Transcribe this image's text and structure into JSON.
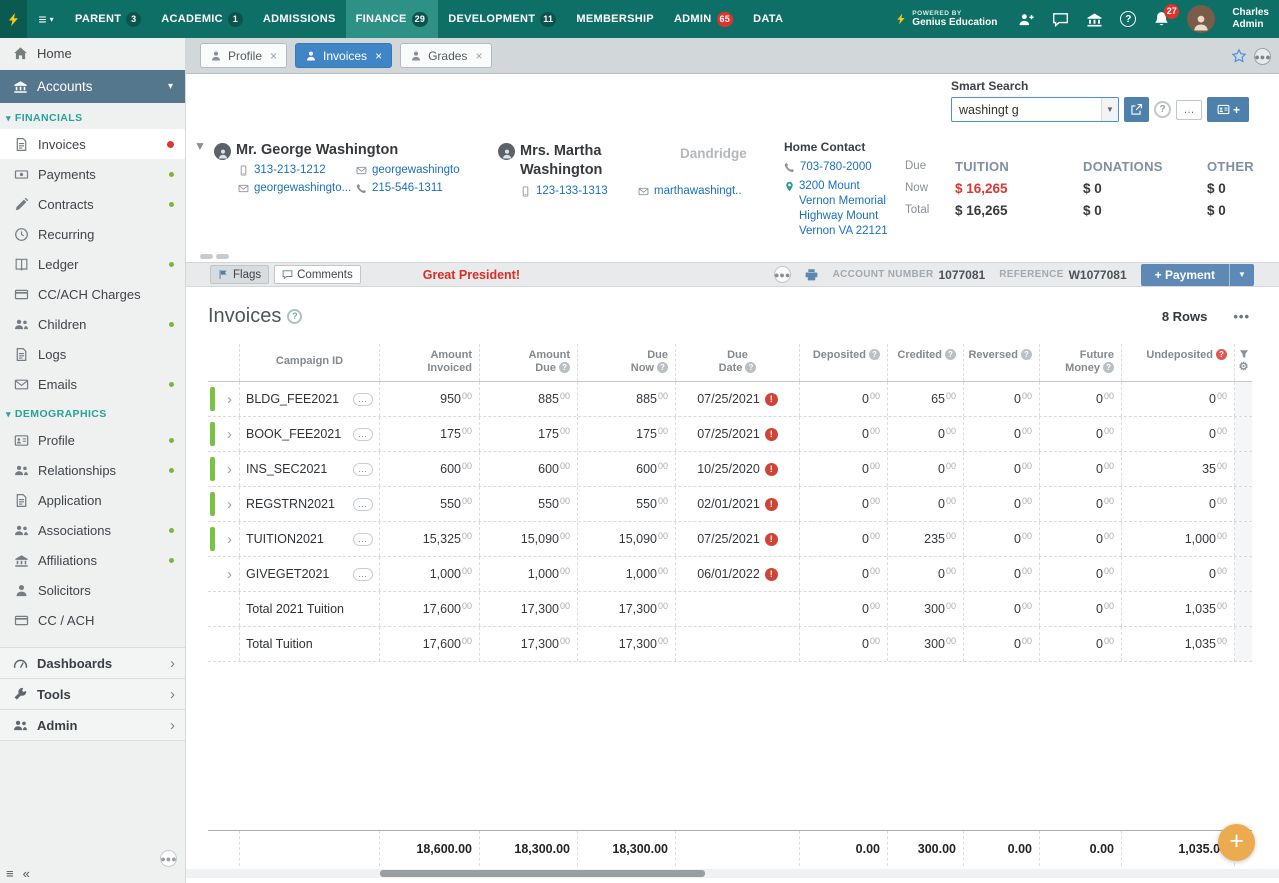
{
  "colors": {
    "nav_teal": "#0e6f66",
    "nav_active_teal": "#2e9186",
    "accent_blue": "#4086c6",
    "button_blue": "#5d89b4",
    "link_blue": "#1a6fc0",
    "alert_red": "#e0332c",
    "due_red": "#e0352f",
    "row_green": "#7cc242",
    "fab_orange": "#ecab4f"
  },
  "topnav": {
    "items": [
      {
        "label": "PARENT",
        "badge": "3",
        "badge_style": "",
        "active": false
      },
      {
        "label": "ACADEMIC",
        "badge": "1",
        "badge_style": "",
        "active": false
      },
      {
        "label": "ADMISSIONS",
        "badge": "",
        "badge_style": "",
        "active": false
      },
      {
        "label": "FINANCE",
        "badge": "29",
        "badge_style": "",
        "active": true
      },
      {
        "label": "DEVELOPMENT",
        "badge": "11",
        "badge_style": "",
        "active": false
      },
      {
        "label": "MEMBERSHIP",
        "badge": "",
        "badge_style": "",
        "active": false
      },
      {
        "label": "ADMIN",
        "badge": "65",
        "badge_style": "red",
        "active": false
      },
      {
        "label": "DATA",
        "badge": "",
        "badge_style": "",
        "active": false
      }
    ],
    "powered_by": {
      "line1": "POWERED BY",
      "line2": "Genius Education"
    },
    "bell_badge": "27",
    "user": {
      "line1": "Charles",
      "line2": "Admin"
    }
  },
  "sidebar": {
    "home_label": "Home",
    "accounts_label": "Accounts",
    "sections": [
      {
        "label": "FINANCIALS",
        "items": [
          {
            "label": "Invoices",
            "icon": "doc",
            "dot": "red",
            "active": true
          },
          {
            "label": "Payments",
            "icon": "money",
            "dot": "green",
            "active": false
          },
          {
            "label": "Contracts",
            "icon": "pencil",
            "dot": "green",
            "active": false
          },
          {
            "label": "Recurring",
            "icon": "clock",
            "dot": "",
            "active": false
          },
          {
            "label": "Ledger",
            "icon": "book",
            "dot": "green",
            "active": false
          },
          {
            "label": "CC/ACH Charges",
            "icon": "card",
            "dot": "",
            "active": false
          },
          {
            "label": "Children",
            "icon": "people",
            "dot": "green",
            "active": false
          },
          {
            "label": "Logs",
            "icon": "doc",
            "dot": "",
            "active": false
          },
          {
            "label": "Emails",
            "icon": "mail",
            "dot": "green",
            "active": false
          }
        ]
      },
      {
        "label": "DEMOGRAPHICS",
        "items": [
          {
            "label": "Profile",
            "icon": "idcard",
            "dot": "green",
            "active": false
          },
          {
            "label": "Relationships",
            "icon": "people",
            "dot": "green",
            "active": false
          },
          {
            "label": "Application",
            "icon": "doc",
            "dot": "",
            "active": false
          },
          {
            "label": "Associations",
            "icon": "people",
            "dot": "green",
            "active": false
          },
          {
            "label": "Affiliations",
            "icon": "bank",
            "dot": "green",
            "active": false
          },
          {
            "label": "Solicitors",
            "icon": "person",
            "dot": "",
            "active": false
          },
          {
            "label": "CC / ACH",
            "icon": "card",
            "dot": "",
            "active": false
          }
        ]
      }
    ],
    "bottom_items": [
      {
        "label": "Dashboards",
        "icon": "gauge"
      },
      {
        "label": "Tools",
        "icon": "wrench"
      },
      {
        "label": "Admin",
        "icon": "people"
      }
    ]
  },
  "tabs": [
    {
      "label": "Profile",
      "active": false
    },
    {
      "label": "Invoices",
      "active": true
    },
    {
      "label": "Grades",
      "active": false
    }
  ],
  "smart_search": {
    "label": "Smart Search",
    "value": "washingt g"
  },
  "account": {
    "primary": {
      "name": "Mr. George Washington",
      "mobile": "313-213-1212",
      "email1": "georgewashingto",
      "email2": "georgewashingto...",
      "phone": "215-546-1311"
    },
    "secondary": {
      "name_line1": "Mrs. Martha",
      "name_line2": "Washington",
      "mobile": "123-133-1313",
      "email": "marthawashingt.."
    },
    "nickname": "Dandridge",
    "home_contact": {
      "label": "Home Contact",
      "phone": "703-780-2000",
      "address_lines": [
        "3200 Mount",
        "Vernon Memorial",
        "Highway Mount",
        "Vernon VA 22121"
      ]
    },
    "summary": {
      "rows": [
        "Due",
        "Now",
        "Total"
      ],
      "columns": [
        {
          "label": "TUITION",
          "now": "$ 16,265",
          "total": "$ 16,265"
        },
        {
          "label": "DONATIONS",
          "now": "$ 0",
          "total": "$ 0"
        },
        {
          "label": "OTHER",
          "now": "$ 0",
          "total": "$ 0"
        }
      ]
    }
  },
  "toolbar": {
    "flags_label": "Flags",
    "comments_label": "Comments",
    "note": "Great President!",
    "account_number_label": "ACCOUNT NUMBER",
    "account_number": "1077081",
    "reference_label": "REFERENCE",
    "reference": "W1077081",
    "payment_button": "+ Payment"
  },
  "invoices": {
    "title": "Invoices",
    "rows_count": "8 Rows",
    "columns": [
      {
        "label1": "Campaign ID",
        "label2": "",
        "help": false,
        "help_color": ""
      },
      {
        "label1": "Amount",
        "label2": "Invoiced",
        "help": false,
        "help_color": ""
      },
      {
        "label1": "Amount",
        "label2": "Due",
        "help": true,
        "help_color": ""
      },
      {
        "label1": "Due",
        "label2": "Now",
        "help": true,
        "help_color": ""
      },
      {
        "label1": "Due",
        "label2": "Date",
        "help": true,
        "help_color": ""
      },
      {
        "label1": "Deposited",
        "label2": "",
        "help": true,
        "help_color": ""
      },
      {
        "label1": "Credited",
        "label2": "",
        "help": true,
        "help_color": ""
      },
      {
        "label1": "Reversed",
        "label2": "",
        "help": true,
        "help_color": ""
      },
      {
        "label1": "Future",
        "label2": "Money",
        "help": true,
        "help_color": ""
      },
      {
        "label1": "Undeposited",
        "label2": "",
        "help": true,
        "help_color": "red"
      }
    ],
    "rows": [
      {
        "type": "data",
        "bar": true,
        "campaign": "BLDG_FEE2021",
        "invoiced": "950.00",
        "due": "885.00",
        "due_now": "885.00",
        "due_date": "07/25/2021",
        "overdue": true,
        "deposited": "0.00",
        "credited": "65.00",
        "reversed": "0.00",
        "future": "0.00",
        "undeposited": "0.00"
      },
      {
        "type": "data",
        "bar": true,
        "campaign": "BOOK_FEE2021",
        "invoiced": "175.00",
        "due": "175.00",
        "due_now": "175.00",
        "due_date": "07/25/2021",
        "overdue": true,
        "deposited": "0.00",
        "credited": "0.00",
        "reversed": "0.00",
        "future": "0.00",
        "undeposited": "0.00"
      },
      {
        "type": "data",
        "bar": true,
        "campaign": "INS_SEC2021",
        "invoiced": "600.00",
        "due": "600.00",
        "due_now": "600.00",
        "due_date": "10/25/2020",
        "overdue": true,
        "deposited": "0.00",
        "credited": "0.00",
        "reversed": "0.00",
        "future": "0.00",
        "undeposited": "35.00"
      },
      {
        "type": "data",
        "bar": true,
        "campaign": "REGSTRN2021",
        "invoiced": "550.00",
        "due": "550.00",
        "due_now": "550.00",
        "due_date": "02/01/2021",
        "overdue": true,
        "deposited": "0.00",
        "credited": "0.00",
        "reversed": "0.00",
        "future": "0.00",
        "undeposited": "0.00"
      },
      {
        "type": "data",
        "bar": true,
        "campaign": "TUITION2021",
        "invoiced": "15,325.00",
        "due": "15,090.00",
        "due_now": "15,090.00",
        "due_date": "07/25/2021",
        "overdue": true,
        "deposited": "0.00",
        "credited": "235.00",
        "reversed": "0.00",
        "future": "0.00",
        "undeposited": "1,000.00"
      },
      {
        "type": "data",
        "bar": false,
        "campaign": "GIVEGET2021",
        "invoiced": "1,000.00",
        "due": "1,000.00",
        "due_now": "1,000.00",
        "due_date": "06/01/2022",
        "overdue": true,
        "deposited": "0.00",
        "credited": "0.00",
        "reversed": "0.00",
        "future": "0.00",
        "undeposited": "0.00"
      },
      {
        "type": "total",
        "bar": false,
        "campaign": "Total 2021 Tuition",
        "invoiced": "17,600.00",
        "due": "17,300.00",
        "due_now": "17,300.00",
        "due_date": "",
        "overdue": false,
        "deposited": "0.00",
        "credited": "300.00",
        "reversed": "0.00",
        "future": "0.00",
        "undeposited": "1,035.00"
      },
      {
        "type": "total",
        "bar": false,
        "campaign": "Total Tuition",
        "invoiced": "17,600.00",
        "due": "17,300.00",
        "due_now": "17,300.00",
        "due_date": "",
        "overdue": false,
        "deposited": "0.00",
        "credited": "300.00",
        "reversed": "0.00",
        "future": "0.00",
        "undeposited": "1,035.00"
      }
    ],
    "footer": {
      "invoiced": "18,600.00",
      "due": "18,300.00",
      "due_now": "18,300.00",
      "deposited": "0.00",
      "credited": "300.00",
      "reversed": "0.00",
      "future": "0.00",
      "undeposited": "1,035.00"
    }
  }
}
